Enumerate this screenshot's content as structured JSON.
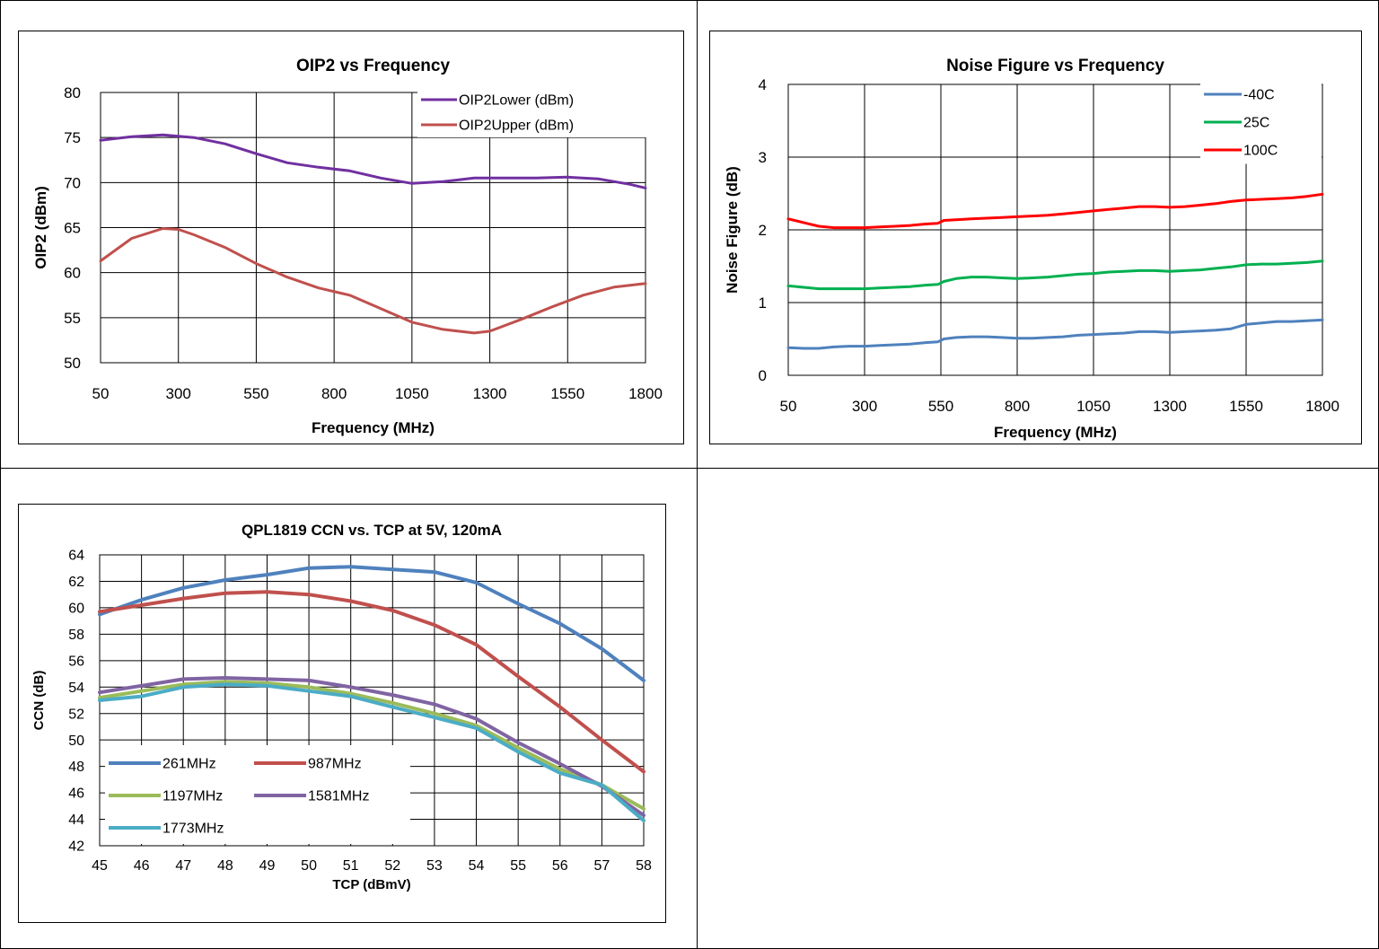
{
  "chart_data": [
    {
      "type": "line",
      "title": "OIP2 vs Frequency",
      "xlabel": "Frequency (MHz)",
      "ylabel": "OIP2 (dBm)",
      "xlim": [
        50,
        1800
      ],
      "ylim": [
        50,
        80
      ],
      "xticks": [
        50,
        300,
        550,
        800,
        1050,
        1300,
        1550,
        1800
      ],
      "yticks": [
        50,
        55,
        60,
        65,
        70,
        75,
        80
      ],
      "grid": true,
      "legend_position": "top-right",
      "series": [
        {
          "name": "OIP2Lower (dBm)",
          "color": "#7030A0",
          "x": [
            50,
            150,
            250,
            350,
            450,
            550,
            650,
            750,
            850,
            950,
            1050,
            1150,
            1250,
            1350,
            1450,
            1550,
            1650,
            1750,
            1800
          ],
          "y": [
            74.7,
            75.1,
            75.3,
            75.0,
            74.3,
            73.2,
            72.2,
            71.7,
            71.3,
            70.5,
            69.9,
            70.1,
            70.5,
            70.5,
            70.5,
            70.6,
            70.4,
            69.8,
            69.4
          ]
        },
        {
          "name": "OIP2Upper (dBm)",
          "color": "#C0504D",
          "x": [
            50,
            150,
            250,
            300,
            350,
            450,
            550,
            650,
            750,
            850,
            950,
            1050,
            1150,
            1250,
            1300,
            1400,
            1500,
            1600,
            1700,
            1800
          ],
          "y": [
            61.3,
            63.8,
            64.9,
            64.8,
            64.2,
            62.8,
            61.0,
            59.5,
            58.3,
            57.5,
            56.0,
            54.5,
            53.7,
            53.3,
            53.5,
            54.8,
            56.2,
            57.5,
            58.4,
            58.8
          ]
        }
      ]
    },
    {
      "type": "line",
      "title": "Noise Figure vs Frequency",
      "xlabel": "Frequency (MHz)",
      "ylabel": "Noise Figure (dB)",
      "xlim": [
        50,
        1800
      ],
      "ylim": [
        0,
        4
      ],
      "xticks": [
        50,
        300,
        550,
        800,
        1050,
        1300,
        1550,
        1800
      ],
      "yticks": [
        0,
        1,
        2,
        3,
        4
      ],
      "grid": true,
      "legend_position": "top-right",
      "series": [
        {
          "name": "-40C",
          "color": "#4F81BD",
          "x": [
            50,
            100,
            150,
            200,
            250,
            300,
            350,
            400,
            450,
            500,
            540,
            560,
            600,
            650,
            700,
            750,
            800,
            850,
            900,
            950,
            1000,
            1050,
            1100,
            1150,
            1200,
            1250,
            1300,
            1350,
            1400,
            1450,
            1500,
            1550,
            1600,
            1650,
            1700,
            1750,
            1800
          ],
          "y": [
            0.38,
            0.37,
            0.37,
            0.39,
            0.4,
            0.4,
            0.41,
            0.42,
            0.43,
            0.45,
            0.46,
            0.5,
            0.52,
            0.53,
            0.53,
            0.52,
            0.51,
            0.51,
            0.52,
            0.53,
            0.55,
            0.56,
            0.57,
            0.58,
            0.6,
            0.6,
            0.59,
            0.6,
            0.61,
            0.62,
            0.64,
            0.7,
            0.72,
            0.74,
            0.74,
            0.75,
            0.76
          ]
        },
        {
          "name": "25C",
          "color": "#00B050",
          "x": [
            50,
            100,
            150,
            200,
            250,
            300,
            350,
            400,
            450,
            500,
            540,
            560,
            600,
            650,
            700,
            750,
            800,
            850,
            900,
            950,
            1000,
            1050,
            1100,
            1150,
            1200,
            1250,
            1300,
            1350,
            1400,
            1450,
            1500,
            1550,
            1600,
            1650,
            1700,
            1750,
            1800
          ],
          "y": [
            1.23,
            1.21,
            1.19,
            1.19,
            1.19,
            1.19,
            1.2,
            1.21,
            1.22,
            1.24,
            1.25,
            1.29,
            1.33,
            1.35,
            1.35,
            1.34,
            1.33,
            1.34,
            1.35,
            1.37,
            1.39,
            1.4,
            1.42,
            1.43,
            1.44,
            1.44,
            1.43,
            1.44,
            1.45,
            1.47,
            1.49,
            1.52,
            1.53,
            1.53,
            1.54,
            1.55,
            1.57
          ]
        },
        {
          "name": "100C",
          "color": "#FF0000",
          "x": [
            50,
            100,
            150,
            200,
            250,
            300,
            350,
            400,
            450,
            500,
            540,
            560,
            600,
            650,
            700,
            750,
            800,
            850,
            900,
            950,
            1000,
            1050,
            1100,
            1150,
            1200,
            1250,
            1300,
            1350,
            1400,
            1450,
            1500,
            1550,
            1600,
            1650,
            1700,
            1750,
            1800
          ],
          "y": [
            2.15,
            2.1,
            2.05,
            2.03,
            2.03,
            2.03,
            2.04,
            2.05,
            2.06,
            2.08,
            2.09,
            2.13,
            2.14,
            2.15,
            2.16,
            2.17,
            2.18,
            2.19,
            2.2,
            2.22,
            2.24,
            2.26,
            2.28,
            2.3,
            2.32,
            2.32,
            2.31,
            2.32,
            2.34,
            2.36,
            2.39,
            2.41,
            2.42,
            2.43,
            2.44,
            2.46,
            2.49
          ]
        }
      ]
    },
    {
      "type": "line",
      "title": "QPL1819 CCN vs. TCP at 5V, 120mA",
      "xlabel": "TCP (dBmV)",
      "ylabel": "CCN (dB)",
      "xlim": [
        45,
        58
      ],
      "ylim": [
        42,
        64
      ],
      "xticks": [
        45,
        46,
        47,
        48,
        49,
        50,
        51,
        52,
        53,
        54,
        55,
        56,
        57,
        58
      ],
      "yticks": [
        42,
        44,
        46,
        48,
        50,
        52,
        54,
        56,
        58,
        60,
        62,
        64
      ],
      "grid": true,
      "legend_position": "bottom-left",
      "series": [
        {
          "name": "261MHz",
          "color": "#4F81BD",
          "x": [
            45,
            46,
            47,
            48,
            49,
            50,
            51,
            52,
            53,
            54,
            55,
            56,
            57,
            58
          ],
          "y": [
            59.5,
            60.6,
            61.5,
            62.1,
            62.5,
            63.0,
            63.1,
            62.9,
            62.7,
            61.9,
            60.3,
            58.8,
            56.9,
            54.5
          ]
        },
        {
          "name": "987MHz",
          "color": "#C0504D",
          "x": [
            45,
            46,
            47,
            48,
            49,
            50,
            51,
            52,
            53,
            54,
            55,
            56,
            57,
            58
          ],
          "y": [
            59.7,
            60.2,
            60.7,
            61.1,
            61.2,
            61.0,
            60.5,
            59.8,
            58.7,
            57.2,
            54.8,
            52.5,
            50.0,
            47.6
          ]
        },
        {
          "name": "1197MHz",
          "color": "#9BBB59",
          "x": [
            45,
            46,
            47,
            48,
            49,
            50,
            51,
            52,
            53,
            54,
            55,
            56,
            57,
            58
          ],
          "y": [
            53.2,
            53.7,
            54.2,
            54.4,
            54.3,
            54.0,
            53.5,
            52.8,
            52.0,
            51.1,
            49.4,
            47.8,
            46.6,
            44.8
          ]
        },
        {
          "name": "1581MHz",
          "color": "#8064A2",
          "x": [
            45,
            46,
            47,
            48,
            49,
            50,
            51,
            52,
            53,
            54,
            55,
            56,
            57,
            58
          ],
          "y": [
            53.6,
            54.1,
            54.6,
            54.7,
            54.6,
            54.5,
            54.0,
            53.4,
            52.7,
            51.6,
            49.8,
            48.2,
            46.5,
            44.3
          ]
        },
        {
          "name": "1773MHz",
          "color": "#4BACC6",
          "x": [
            45,
            46,
            47,
            48,
            49,
            50,
            51,
            52,
            53,
            54,
            55,
            56,
            57,
            58
          ],
          "y": [
            53.0,
            53.3,
            54.0,
            54.2,
            54.1,
            53.7,
            53.3,
            52.5,
            51.7,
            50.9,
            49.1,
            47.5,
            46.6,
            43.9
          ]
        }
      ]
    }
  ]
}
